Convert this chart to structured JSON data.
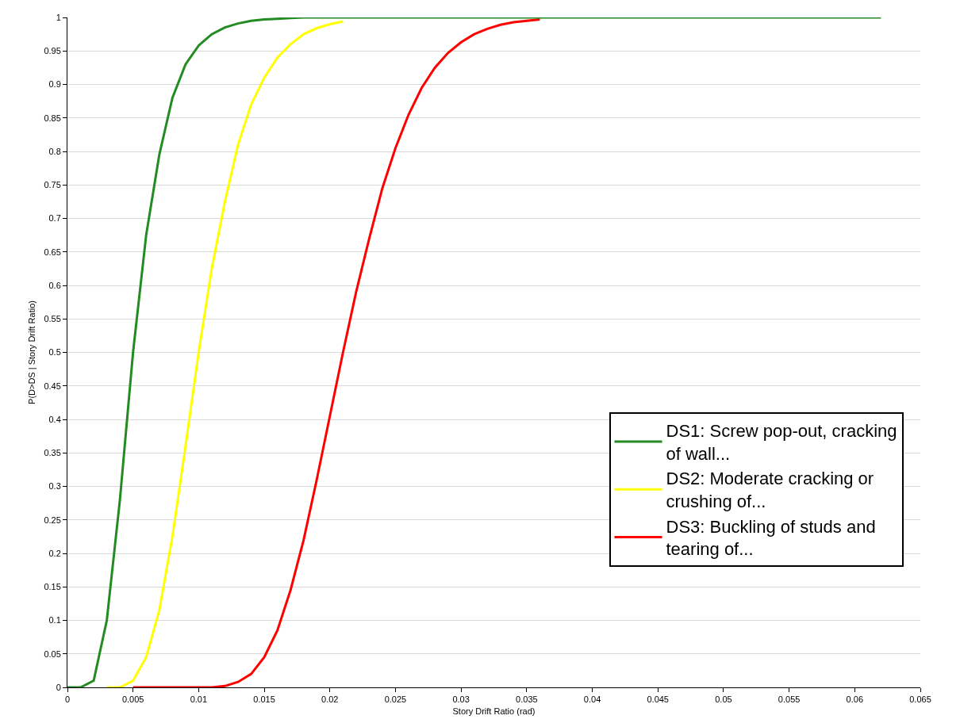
{
  "chart_data": {
    "type": "line",
    "xlabel": "Story Drift Ratio (rad)",
    "ylabel": "P(D>DS | Story Drift Ratio)",
    "x": [
      0,
      0.001,
      0.002,
      0.003,
      0.004,
      0.005,
      0.006,
      0.007,
      0.008,
      0.009,
      0.01,
      0.011,
      0.012,
      0.013,
      0.014,
      0.015,
      0.016,
      0.017,
      0.018,
      0.019,
      0.02,
      0.021,
      0.022,
      0.023,
      0.024,
      0.025,
      0.026,
      0.027,
      0.028,
      0.029,
      0.03,
      0.031,
      0.032,
      0.033,
      0.034,
      0.035,
      0.036,
      0.037,
      0.038,
      0.039,
      0.04,
      0.041,
      0.042,
      0.043,
      0.044,
      0.045,
      0.046,
      0.047,
      0.048,
      0.049,
      0.05,
      0.051,
      0.052,
      0.053,
      0.054,
      0.055,
      0.056,
      0.057,
      0.058,
      0.059,
      0.06,
      0.061,
      0.062
    ],
    "series": [
      {
        "name": "DS1: Screw pop-out, cracking of wall...",
        "color": "#228b22",
        "values": [
          0,
          0,
          0.01,
          0.1,
          0.28,
          0.5,
          0.675,
          0.795,
          0.88,
          0.93,
          0.958,
          0.975,
          0.985,
          0.991,
          0.995,
          0.997,
          0.998,
          0.999,
          1,
          1,
          1,
          1,
          1,
          1,
          1,
          1,
          1,
          1,
          1,
          1,
          1,
          1,
          1,
          1,
          1,
          1,
          1,
          1,
          1,
          1,
          1,
          1,
          1,
          1,
          1,
          1,
          1,
          1,
          1,
          1,
          1,
          1,
          1,
          1,
          1,
          1,
          1,
          1,
          1,
          1,
          1,
          1,
          1
        ]
      },
      {
        "name": "DS2: Moderate cracking or crushing of...",
        "color": "#ffff00",
        "x": [
          0.003,
          0.004,
          0.005,
          0.006,
          0.007,
          0.008,
          0.009,
          0.01,
          0.011,
          0.012,
          0.013,
          0.014,
          0.015,
          0.016,
          0.017,
          0.018,
          0.019,
          0.02,
          0.021
        ],
        "values": [
          0,
          0,
          0.01,
          0.045,
          0.115,
          0.225,
          0.36,
          0.5,
          0.625,
          0.725,
          0.81,
          0.87,
          0.91,
          0.94,
          0.96,
          0.975,
          0.984,
          0.99,
          0.994
        ]
      },
      {
        "name": "DS3: Buckling of studs and tearing of...",
        "color": "#ff0000",
        "x": [
          0.005,
          0.006,
          0.007,
          0.008,
          0.009,
          0.01,
          0.011,
          0.012,
          0.013,
          0.014,
          0.015,
          0.016,
          0.017,
          0.018,
          0.019,
          0.02,
          0.021,
          0.022,
          0.023,
          0.024,
          0.025,
          0.026,
          0.027,
          0.028,
          0.029,
          0.03,
          0.031,
          0.032,
          0.033,
          0.034,
          0.035,
          0.036
        ],
        "values": [
          0,
          0,
          0,
          0,
          0,
          0,
          0,
          0.002,
          0.008,
          0.02,
          0.045,
          0.085,
          0.145,
          0.22,
          0.31,
          0.405,
          0.5,
          0.59,
          0.67,
          0.745,
          0.805,
          0.855,
          0.895,
          0.925,
          0.947,
          0.963,
          0.975,
          0.983,
          0.989,
          0.993,
          0.995,
          0.997
        ]
      }
    ],
    "xlim": [
      0,
      0.065
    ],
    "xticks": [
      0,
      0.005,
      0.01,
      0.015,
      0.02,
      0.025,
      0.03,
      0.035,
      0.04,
      0.045,
      0.05,
      0.055,
      0.06,
      0.065
    ],
    "ylim": [
      0,
      1
    ],
    "yticks": [
      0,
      0.05,
      0.1,
      0.15,
      0.2,
      0.25,
      0.3,
      0.35,
      0.4,
      0.45,
      0.5,
      0.55,
      0.6,
      0.65,
      0.7,
      0.75,
      0.8,
      0.85,
      0.9,
      0.95,
      1
    ],
    "grid": "y",
    "legend": "bottom right",
    "marker": "none",
    "line_style": "solid"
  }
}
